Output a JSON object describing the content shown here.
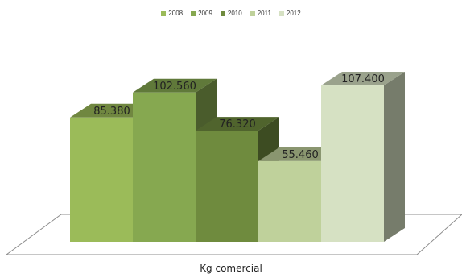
{
  "chart_data": {
    "type": "bar",
    "categories": [
      "Kg comercial"
    ],
    "series": [
      {
        "name": "2008",
        "values": [
          85380
        ],
        "label": "85.380",
        "color": "#9bbb59"
      },
      {
        "name": "2009",
        "values": [
          102560
        ],
        "label": "102.560",
        "color": "#86a850"
      },
      {
        "name": "2010",
        "values": [
          76320
        ],
        "label": "76.320",
        "color": "#6f8b3e"
      },
      {
        "name": "2011",
        "values": [
          55460
        ],
        "label": "55.460",
        "color": "#bfd19b"
      },
      {
        "name": "2012",
        "values": [
          107400
        ],
        "label": "107.400",
        "color": "#d6e1c3"
      }
    ],
    "xlabel": "Kg comercial",
    "legend_position": "top",
    "style": "3d-clustered-column",
    "grid": false
  }
}
